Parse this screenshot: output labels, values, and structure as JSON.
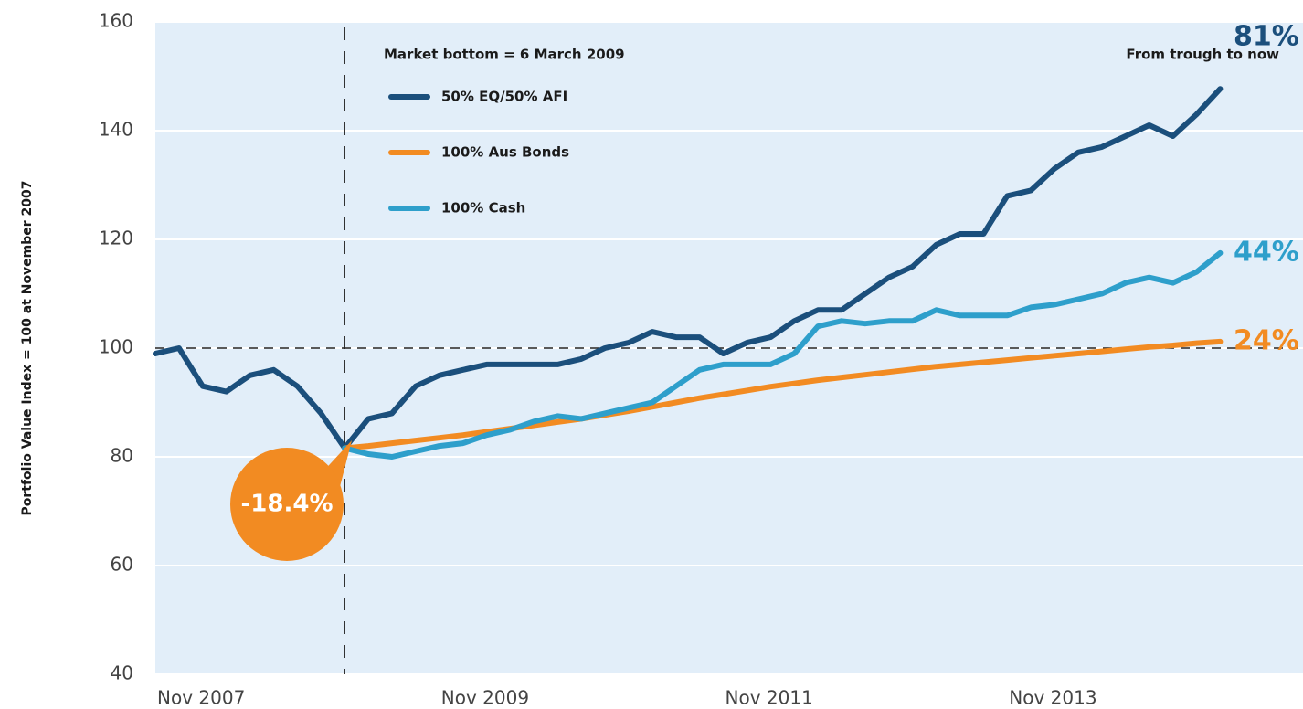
{
  "chart_data": {
    "type": "line",
    "y_label": "Portfolio Value Index = 100 at November 2007",
    "annotations": {
      "market_bottom": "Market bottom = 6 March 2009",
      "trough_header": "From trough to now",
      "trough_drop": "-18.4%"
    },
    "reference": {
      "hline": 100,
      "vline": "2009-03"
    },
    "x": [
      "2007-11",
      "2008-01",
      "2008-03",
      "2008-05",
      "2008-07",
      "2008-09",
      "2008-11",
      "2009-01",
      "2009-03",
      "2009-05",
      "2009-07",
      "2009-09",
      "2009-11",
      "2010-01",
      "2010-03",
      "2010-05",
      "2010-07",
      "2010-09",
      "2010-11",
      "2011-01",
      "2011-03",
      "2011-05",
      "2011-07",
      "2011-09",
      "2011-11",
      "2012-01",
      "2012-03",
      "2012-05",
      "2012-07",
      "2012-09",
      "2012-11",
      "2013-01",
      "2013-03",
      "2013-05",
      "2013-07",
      "2013-09",
      "2013-11",
      "2014-01",
      "2014-03",
      "2014-05",
      "2014-07",
      "2014-09",
      "2014-11",
      "2015-01",
      "2015-03",
      "2015-05"
    ],
    "series": [
      {
        "name": "50% EQ/50% AFI",
        "color": "#1b4f7c",
        "end_label": "81%",
        "values": [
          99,
          100,
          93,
          92,
          95,
          96,
          93,
          88,
          81.6,
          87,
          88,
          93,
          95,
          96,
          97,
          97,
          97,
          97,
          98,
          100,
          101,
          103,
          102,
          102,
          99,
          101,
          102,
          105,
          107,
          107,
          110,
          113,
          115,
          119,
          121,
          121,
          128,
          129,
          133,
          136,
          137,
          139,
          141,
          139,
          143,
          147.7
        ]
      },
      {
        "name": "100% Aus Bonds",
        "color": "#f28b22",
        "end_label": "24%",
        "values": [
          null,
          null,
          null,
          null,
          null,
          null,
          null,
          null,
          81.6,
          82,
          82.5,
          83,
          83.5,
          84,
          84.6,
          85.2,
          85.8,
          86.4,
          87,
          87.7,
          88.4,
          89.2,
          90,
          90.8,
          91.5,
          92.2,
          92.9,
          93.5,
          94.1,
          94.6,
          95.1,
          95.6,
          96.1,
          96.6,
          97,
          97.4,
          97.8,
          98.2,
          98.6,
          99,
          99.4,
          99.8,
          100.2,
          100.5,
          100.9,
          101.2
        ]
      },
      {
        "name": "100% Cash",
        "color": "#2e9fcb",
        "end_label": "44%",
        "values": [
          null,
          null,
          null,
          null,
          null,
          null,
          null,
          null,
          81.6,
          80.5,
          80,
          81,
          82,
          82.5,
          84,
          85,
          86.5,
          87.5,
          87,
          88,
          89,
          90,
          93,
          96,
          97,
          97,
          97,
          99,
          104,
          105,
          104.5,
          105,
          105,
          107,
          106,
          106,
          106,
          107.5,
          108,
          109,
          110,
          112,
          113,
          112,
          114,
          117.5
        ]
      }
    ],
    "xlim": [
      "2007-11",
      "2015-12"
    ],
    "xticks": [
      {
        "value": "2007-11",
        "label": "Nov 2007"
      },
      {
        "value": "2009-11",
        "label": "Nov 2009"
      },
      {
        "value": "2011-11",
        "label": "Nov 2011"
      },
      {
        "value": "2013-11",
        "label": "Nov 2013"
      }
    ],
    "ylim": [
      40,
      160
    ],
    "yticks": [
      40,
      60,
      80,
      100,
      120,
      140,
      160
    ],
    "grid": true
  }
}
